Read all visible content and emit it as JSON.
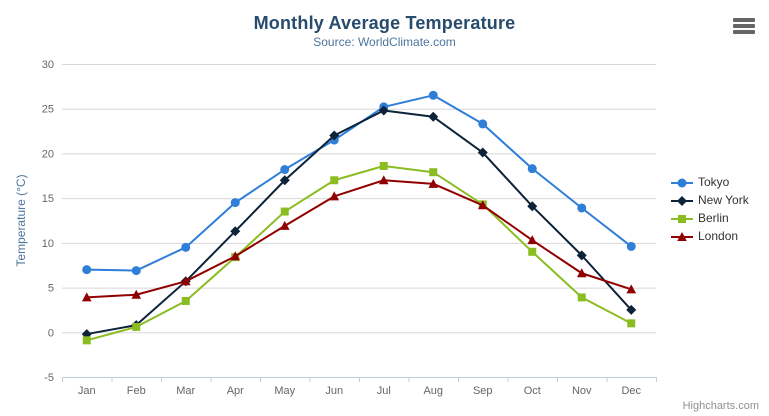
{
  "chart_data": {
    "type": "line",
    "title": "Monthly Average Temperature",
    "subtitle": "Source: WorldClimate.com",
    "categories": [
      "Jan",
      "Feb",
      "Mar",
      "Apr",
      "May",
      "Jun",
      "Jul",
      "Aug",
      "Sep",
      "Oct",
      "Nov",
      "Dec"
    ],
    "xlabel": "",
    "ylabel": "Temperature (°C)",
    "ylim": [
      -5,
      30
    ],
    "yticks": [
      -5,
      0,
      5,
      10,
      15,
      20,
      25,
      30
    ],
    "grid": true,
    "legend_position": "right",
    "series": [
      {
        "name": "Tokyo",
        "color": "#2f7ed8",
        "symbol": "circle",
        "values": [
          7.0,
          6.9,
          9.5,
          14.5,
          18.2,
          21.5,
          25.2,
          26.5,
          23.3,
          18.3,
          13.9,
          9.6
        ]
      },
      {
        "name": "New York",
        "color": "#0d233a",
        "symbol": "diamond",
        "values": [
          -0.2,
          0.8,
          5.7,
          11.3,
          17.0,
          22.0,
          24.8,
          24.1,
          20.1,
          14.1,
          8.6,
          2.5
        ]
      },
      {
        "name": "Berlin",
        "color": "#8bbc21",
        "symbol": "square",
        "values": [
          -0.9,
          0.6,
          3.5,
          8.4,
          13.5,
          17.0,
          18.6,
          17.9,
          14.3,
          9.0,
          3.9,
          1.0
        ]
      },
      {
        "name": "London",
        "color": "#910000",
        "symbol": "triangle",
        "values": [
          3.9,
          4.2,
          5.7,
          8.5,
          11.9,
          15.2,
          17.0,
          16.6,
          14.2,
          10.3,
          6.6,
          4.8
        ]
      }
    ]
  },
  "credits": {
    "text": "Highcharts.com"
  },
  "colors": {
    "title": "#274b6d",
    "subtitle": "#4d759e",
    "axis_title": "#4d759e",
    "axis_label": "#666666",
    "grid_line": "#d8d8d8",
    "axis_line": "#c0d0e0",
    "legend_text": "#333333",
    "credits_text": "#909090",
    "burger_icon": "#666666"
  }
}
